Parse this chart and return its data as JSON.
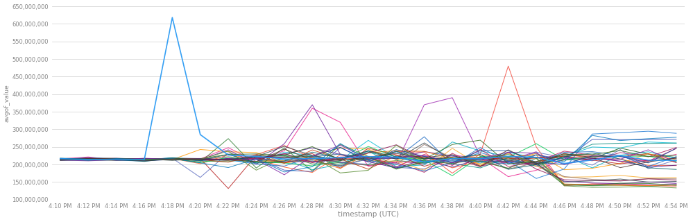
{
  "xlabel": "timestamp (UTC)",
  "ylabel": "avgof_value",
  "ylim": [
    100000000,
    650000000
  ],
  "yticks": [
    100000000,
    150000000,
    200000000,
    250000000,
    300000000,
    350000000,
    400000000,
    450000000,
    500000000,
    550000000,
    600000000,
    650000000
  ],
  "xtick_labels": [
    "4:10 PM",
    "4:12 PM",
    "4:14 PM",
    "4:16 PM",
    "4:18 PM",
    "4:20 PM",
    "4:22 PM",
    "4:24 PM",
    "4:26 PM",
    "4:28 PM",
    "4:30 PM",
    "4:32 PM",
    "4:34 PM",
    "4:36 PM",
    "4:38 PM",
    "4:40 PM",
    "4:42 PM",
    "4:44 PM",
    "4:46 PM",
    "4:48 PM",
    "4:50 PM",
    "4:52 PM",
    "4:54 PM"
  ],
  "num_xticks": 23,
  "background_color": "#ffffff",
  "grid_color": "#d8d8d8",
  "num_series": 35,
  "base_memory": 215000000,
  "spike_value": 618000000,
  "spike_index": 4,
  "colors": [
    "#2196f3",
    "#e91e8c",
    "#00bcd4",
    "#9c27b0",
    "#ff5722",
    "#1b5e20",
    "#f44336",
    "#3f51b5",
    "#ff9800",
    "#6a1b9a",
    "#00acc1",
    "#ad1457",
    "#388e3c",
    "#b71c1c",
    "#1565c0",
    "#ef6c00",
    "#5c6bc0",
    "#00897b",
    "#f9a825",
    "#4a148c",
    "#00c853",
    "#8d6e63",
    "#1976d2",
    "#c2185b",
    "#2e7d32",
    "#bf360c",
    "#0d47a1",
    "#880e4f",
    "#006064",
    "#33691e",
    "#37474f",
    "#7b1fa2",
    "#0277bd",
    "#558b2f",
    "#4e342e"
  ]
}
